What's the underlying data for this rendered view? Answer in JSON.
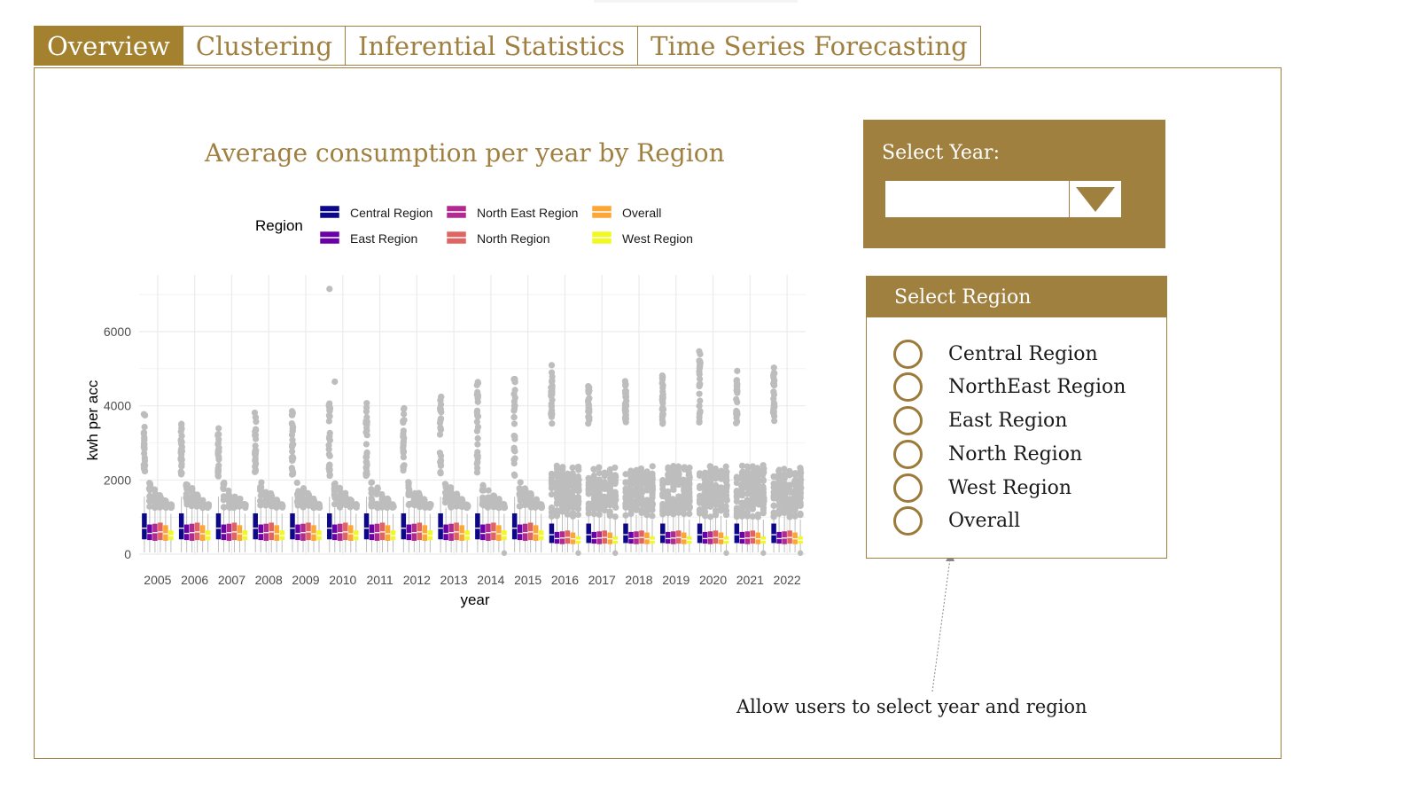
{
  "tabs": [
    "Overview",
    "Clustering",
    "Inferential Statistics",
    "Time Series Forecasting"
  ],
  "active_tab": "Overview",
  "chart_data": {
    "type": "box",
    "title": "Average consumption per year by Region",
    "xlabel": "year",
    "ylabel": "kwh per acc",
    "ylim": [
      0,
      7000
    ],
    "yticks": [
      0,
      2000,
      4000,
      6000
    ],
    "legend_title": "Region",
    "legend_position": "top",
    "categories": [
      "2005",
      "2006",
      "2007",
      "2008",
      "2009",
      "2010",
      "2011",
      "2012",
      "2013",
      "2014",
      "2015",
      "2016",
      "2017",
      "2018",
      "2019",
      "2020",
      "2021",
      "2022"
    ],
    "series": [
      {
        "name": "Central Region",
        "color": "#0d0887"
      },
      {
        "name": "East Region",
        "color": "#6a00a8"
      },
      {
        "name": "North East Region",
        "color": "#b12a90"
      },
      {
        "name": "North Region",
        "color": "#e16462"
      },
      {
        "name": "Overall",
        "color": "#fca636"
      },
      {
        "name": "West Region",
        "color": "#f0f921"
      }
    ],
    "grid": true
  },
  "year_selector": {
    "label": "Select Year:",
    "value": ""
  },
  "region_selector": {
    "header": "Select Region",
    "options": [
      "Central Region",
      "NorthEast Region",
      "East Region",
      "North Region",
      "West Region",
      "Overall"
    ]
  },
  "annotation": "Allow users to select year and region"
}
